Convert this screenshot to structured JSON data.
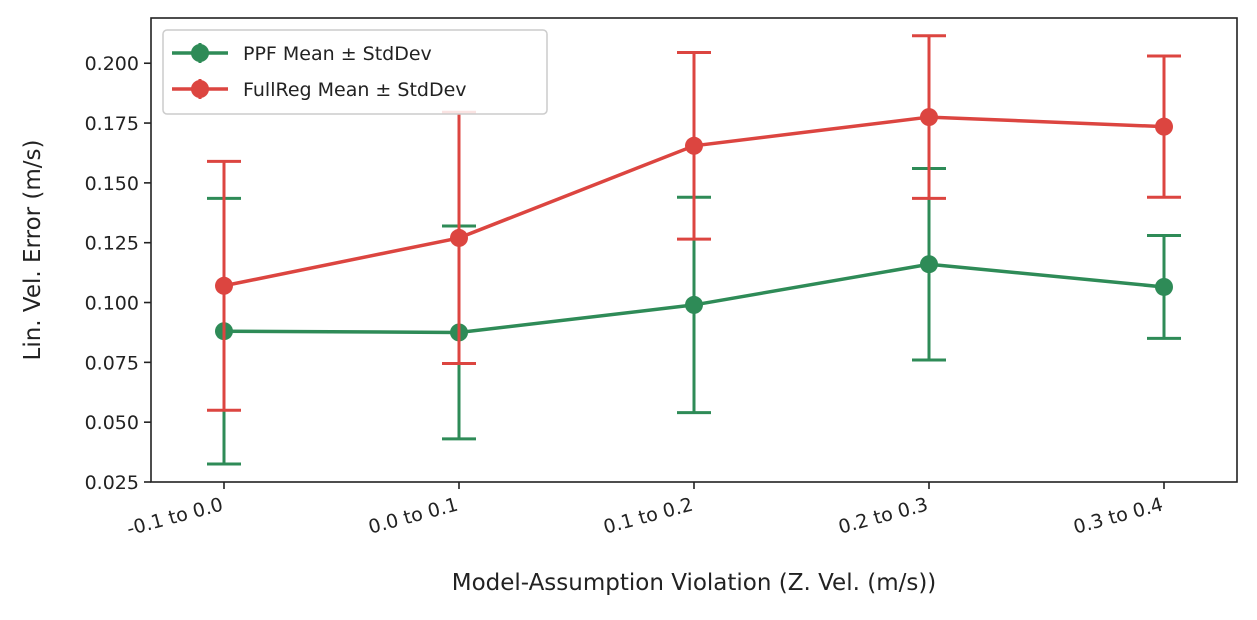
{
  "chart_data": {
    "type": "line",
    "title": "",
    "xlabel": "Model-Assumption Violation (Z. Vel. (m/s))",
    "ylabel": "Lin. Vel. Error (m/s)",
    "categories": [
      "-0.1 to 0.0",
      "0.0 to 0.1",
      "0.1 to 0.2",
      "0.2 to 0.3",
      "0.3 to 0.4"
    ],
    "ylim": [
      0.025,
      0.2189
    ],
    "yticks": [
      0.025,
      0.05,
      0.075,
      0.1,
      0.125,
      0.15,
      0.175,
      0.2
    ],
    "ytick_labels": [
      "0.025",
      "0.050",
      "0.075",
      "0.100",
      "0.125",
      "0.150",
      "0.175",
      "0.200"
    ],
    "grid": false,
    "legend_position": "top-left",
    "series": [
      {
        "name": "PPF Mean ± StdDev",
        "color": "#2e8b57",
        "values": [
          0.088,
          0.0875,
          0.099,
          0.116,
          0.1065
        ],
        "std": [
          0.0555,
          0.0445,
          0.045,
          0.04,
          0.0215
        ]
      },
      {
        "name": "FullReg Mean ± StdDev",
        "color": "#dc4540",
        "values": [
          0.107,
          0.127,
          0.1655,
          0.1775,
          0.1735
        ],
        "std": [
          0.052,
          0.0525,
          0.039,
          0.034,
          0.0295
        ]
      }
    ]
  }
}
